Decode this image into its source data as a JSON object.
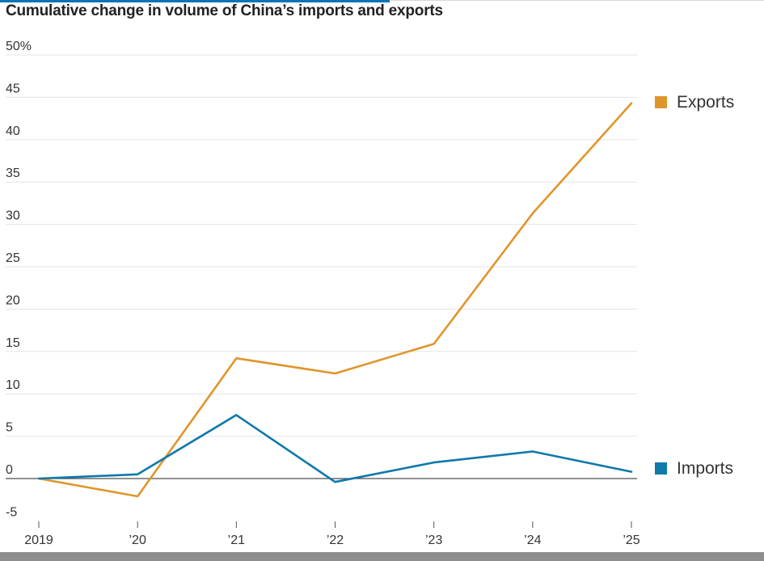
{
  "chart_data": {
    "type": "line",
    "title": "Cumulative change in volume of China’s imports and exports",
    "categories": [
      "2019",
      "’20",
      "’21",
      "’22",
      "’23",
      "’24",
      "’25"
    ],
    "ylim": [
      -5,
      50
    ],
    "yticks": [
      -5,
      0,
      5,
      10,
      15,
      20,
      25,
      30,
      35,
      40,
      45,
      50
    ],
    "ytick_labels": [
      "-5",
      "0",
      "5",
      "10",
      "15",
      "20",
      "25",
      "30",
      "35",
      "40",
      "45",
      "50%"
    ],
    "xlabel": "",
    "ylabel": "",
    "grid": true,
    "legend": "right, beside line ends",
    "series": [
      {
        "name": "Exports",
        "color": "#e0952b",
        "values": [
          0,
          -2.1,
          14.2,
          12.4,
          15.9,
          31.3,
          44.3
        ]
      },
      {
        "name": "Imports",
        "color": "#0f79aa",
        "values": [
          0,
          0.5,
          7.5,
          -0.4,
          1.9,
          3.2,
          0.8
        ]
      }
    ]
  },
  "colors": {
    "accent_rule": "#0274b6",
    "grid": "#e5e5e5",
    "zero_line": "#4d4d4d",
    "tick_text": "#333333"
  }
}
